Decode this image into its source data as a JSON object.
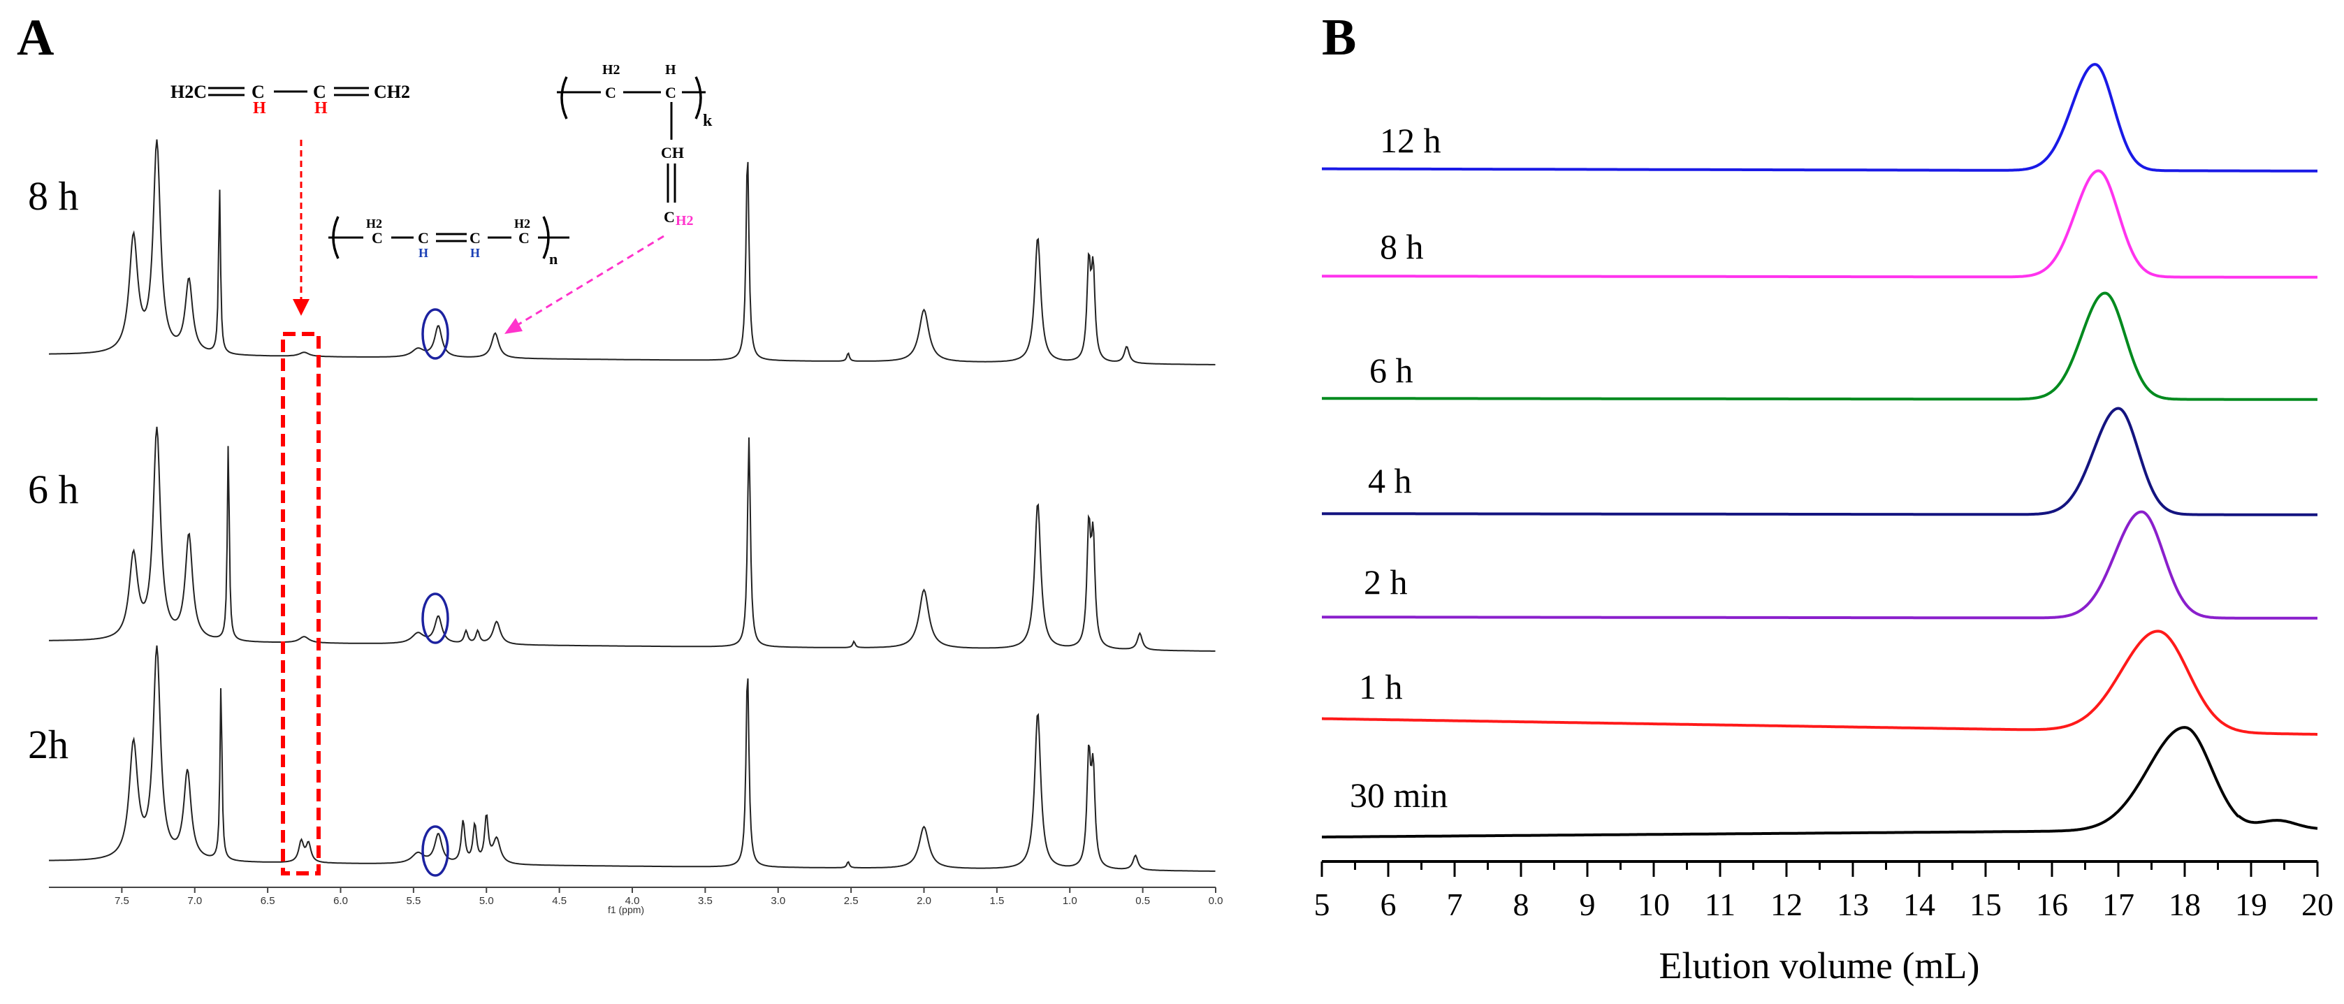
{
  "panels": {
    "a_label": "A",
    "b_label": "B"
  },
  "chart_data": [
    {
      "type": "line",
      "panel": "A",
      "title": "",
      "xlabel": "f1 (ppm)",
      "ylabel": "",
      "xlim": [
        8.0,
        0.0
      ],
      "x_reversed": true,
      "ticks": [
        "7.5",
        "7.0",
        "6.5",
        "6.0",
        "5.5",
        "5.0",
        "4.5",
        "4.0",
        "3.5",
        "3.0",
        "2.5",
        "2.0",
        "1.5",
        "1.0",
        "0.5",
        "0.0"
      ],
      "tick_values": [
        7.5,
        7.0,
        6.5,
        6.0,
        5.5,
        5.0,
        4.5,
        4.0,
        3.5,
        3.0,
        2.5,
        2.0,
        1.5,
        1.0,
        0.5,
        0.0
      ],
      "series": [
        {
          "name": "8 h",
          "peaks": [
            {
              "ppm": 7.42,
              "h": 0.55,
              "w": 0.035
            },
            {
              "ppm": 7.26,
              "h": 1.0,
              "w": 0.03
            },
            {
              "ppm": 7.04,
              "h": 0.35,
              "w": 0.03
            },
            {
              "ppm": 6.83,
              "h": 0.8,
              "w": 0.008
            },
            {
              "ppm": 6.25,
              "h": 0.02,
              "w": 0.04
            },
            {
              "ppm": 5.47,
              "h": 0.04,
              "w": 0.05
            },
            {
              "ppm": 5.33,
              "h": 0.15,
              "w": 0.03
            },
            {
              "ppm": 4.94,
              "h": 0.12,
              "w": 0.03
            },
            {
              "ppm": 3.21,
              "h": 1.0,
              "w": 0.012
            },
            {
              "ppm": 2.52,
              "h": 0.04,
              "w": 0.01
            },
            {
              "ppm": 2.0,
              "h": 0.25,
              "w": 0.04
            },
            {
              "ppm": 1.22,
              "h": 0.6,
              "w": 0.025
            },
            {
              "ppm": 0.87,
              "h": 0.45,
              "w": 0.015
            },
            {
              "ppm": 0.84,
              "h": 0.42,
              "w": 0.015
            },
            {
              "ppm": 0.61,
              "h": 0.08,
              "w": 0.02
            }
          ]
        },
        {
          "name": "6 h",
          "peaks": [
            {
              "ppm": 7.42,
              "h": 0.4,
              "w": 0.035
            },
            {
              "ppm": 7.26,
              "h": 1.0,
              "w": 0.03
            },
            {
              "ppm": 7.04,
              "h": 0.5,
              "w": 0.03
            },
            {
              "ppm": 6.77,
              "h": 0.95,
              "w": 0.008
            },
            {
              "ppm": 6.25,
              "h": 0.03,
              "w": 0.04
            },
            {
              "ppm": 5.47,
              "h": 0.05,
              "w": 0.05
            },
            {
              "ppm": 5.33,
              "h": 0.13,
              "w": 0.03
            },
            {
              "ppm": 5.14,
              "h": 0.06,
              "w": 0.015
            },
            {
              "ppm": 5.06,
              "h": 0.06,
              "w": 0.015
            },
            {
              "ppm": 4.93,
              "h": 0.11,
              "w": 0.03
            },
            {
              "ppm": 3.2,
              "h": 1.0,
              "w": 0.012
            },
            {
              "ppm": 2.48,
              "h": 0.03,
              "w": 0.01
            },
            {
              "ppm": 2.0,
              "h": 0.28,
              "w": 0.04
            },
            {
              "ppm": 1.22,
              "h": 0.7,
              "w": 0.025
            },
            {
              "ppm": 0.87,
              "h": 0.55,
              "w": 0.015
            },
            {
              "ppm": 0.84,
              "h": 0.5,
              "w": 0.015
            },
            {
              "ppm": 0.52,
              "h": 0.08,
              "w": 0.02
            }
          ]
        },
        {
          "name": "2h",
          "peaks": [
            {
              "ppm": 7.42,
              "h": 0.55,
              "w": 0.035
            },
            {
              "ppm": 7.26,
              "h": 1.0,
              "w": 0.03
            },
            {
              "ppm": 7.05,
              "h": 0.42,
              "w": 0.03
            },
            {
              "ppm": 6.82,
              "h": 0.85,
              "w": 0.008
            },
            {
              "ppm": 6.27,
              "h": 0.1,
              "w": 0.02
            },
            {
              "ppm": 6.22,
              "h": 0.09,
              "w": 0.02
            },
            {
              "ppm": 5.47,
              "h": 0.05,
              "w": 0.05
            },
            {
              "ppm": 5.33,
              "h": 0.14,
              "w": 0.03
            },
            {
              "ppm": 5.16,
              "h": 0.2,
              "w": 0.015
            },
            {
              "ppm": 5.08,
              "h": 0.18,
              "w": 0.015
            },
            {
              "ppm": 5.0,
              "h": 0.22,
              "w": 0.015
            },
            {
              "ppm": 4.93,
              "h": 0.12,
              "w": 0.03
            },
            {
              "ppm": 3.21,
              "h": 0.95,
              "w": 0.012
            },
            {
              "ppm": 2.52,
              "h": 0.03,
              "w": 0.01
            },
            {
              "ppm": 2.0,
              "h": 0.2,
              "w": 0.04
            },
            {
              "ppm": 1.22,
              "h": 0.75,
              "w": 0.025
            },
            {
              "ppm": 0.87,
              "h": 0.52,
              "w": 0.015
            },
            {
              "ppm": 0.84,
              "h": 0.45,
              "w": 0.015
            },
            {
              "ppm": 0.55,
              "h": 0.07,
              "w": 0.02
            }
          ]
        }
      ],
      "annotations": {
        "monomer": {
          "left": "H2C",
          "mid1": "C",
          "mid2": "C",
          "h1": "H",
          "h2": "H",
          "right": "CH2"
        },
        "poly14": {
          "c1": "C",
          "h2a": "H2",
          "c2": "C",
          "c3": "C",
          "h1": "H",
          "h2": "H",
          "c4": "C",
          "h2b": "H2",
          "n": "n"
        },
        "poly12": {
          "c1": "C",
          "h2a": "H2",
          "c2": "C",
          "h": "H",
          "k": "k",
          "ch": "CH",
          "c3": "C",
          "h2b": "H2"
        }
      },
      "colors": {
        "highlight_box": "#ff0000",
        "circle": "#1c22a0",
        "arrow_main": "#ff0000",
        "arrow_vinyl": "#ff33cc",
        "h_red": "#ff0000",
        "h_blue": "#1a3fb5",
        "h_pink": "#ff33cc"
      }
    },
    {
      "type": "line",
      "panel": "B",
      "title": "",
      "xlabel": "Elution volume (mL)",
      "ylabel": "",
      "xlim": [
        5,
        20
      ],
      "ticks": [
        "5",
        "6",
        "7",
        "8",
        "9",
        "10",
        "11",
        "12",
        "13",
        "14",
        "15",
        "16",
        "17",
        "18",
        "19",
        "20"
      ],
      "tick_values": [
        5,
        6,
        7,
        8,
        9,
        10,
        11,
        12,
        13,
        14,
        15,
        16,
        17,
        18,
        19,
        20
      ],
      "series": [
        {
          "name": "12 h",
          "color": "#1a1ae6",
          "peak_x": 16.65,
          "peak_height": 0.95,
          "baseline_start": 0.04,
          "baseline_end": 0.02,
          "sigma_left": 0.35,
          "sigma_right": 0.28
        },
        {
          "name": "8 h",
          "color": "#ff33ee",
          "peak_x": 16.7,
          "peak_height": 0.95,
          "baseline_start": 0.03,
          "baseline_end": 0.02,
          "sigma_left": 0.35,
          "sigma_right": 0.3
        },
        {
          "name": "6 h",
          "color": "#008a1e",
          "peak_x": 16.8,
          "peak_height": 0.95,
          "baseline_start": 0.03,
          "baseline_end": 0.02,
          "sigma_left": 0.35,
          "sigma_right": 0.3
        },
        {
          "name": "4 h",
          "color": "#141480",
          "peak_x": 17.0,
          "peak_height": 0.95,
          "baseline_start": 0.03,
          "baseline_end": 0.02,
          "sigma_left": 0.37,
          "sigma_right": 0.3
        },
        {
          "name": "2 h",
          "color": "#8a1fcc",
          "peak_x": 17.35,
          "peak_height": 0.95,
          "baseline_start": 0.03,
          "baseline_end": 0.02,
          "sigma_left": 0.4,
          "sigma_right": 0.33
        },
        {
          "name": "1 h",
          "color": "#ff1a1a",
          "peak_x": 17.6,
          "peak_height": 0.9,
          "baseline_start": 0.04,
          "baseline_end": -0.1,
          "sigma_left": 0.55,
          "sigma_right": 0.45
        },
        {
          "name": "30 min",
          "color": "#000000",
          "peak_x": 18.0,
          "peak_height": 0.92,
          "baseline_start": 0.0,
          "baseline_end": 0.07,
          "sigma_left": 0.55,
          "sigma_right": 0.4
        }
      ]
    }
  ]
}
